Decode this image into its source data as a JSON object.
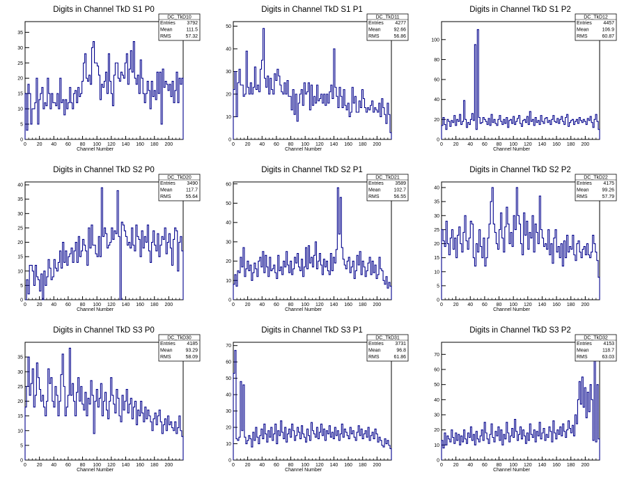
{
  "canvas_background": "#ffffff",
  "line_color": "#00008b",
  "chart_data": [
    {
      "type": "histogram",
      "title": "Digits in Channel TkD S1 P0",
      "stats": {
        "name": "DC_TkD10",
        "entries": "3792",
        "mean": "111.5",
        "rms": "57.32"
      },
      "xlabel": "Channel Number",
      "xlim": [
        0,
        220
      ],
      "ylim": [
        0,
        38.5
      ],
      "xticks": [
        0,
        20,
        40,
        60,
        80,
        100,
        120,
        140,
        160,
        180,
        200
      ],
      "yticks": [
        0,
        5,
        10,
        15,
        20,
        25,
        30,
        35
      ],
      "values": [
        15,
        3,
        18,
        15,
        5,
        10,
        10,
        12,
        20,
        5,
        13,
        15,
        17,
        10,
        12,
        11,
        20,
        15,
        10,
        15,
        12,
        12,
        11,
        15,
        10,
        20,
        12,
        13,
        8,
        13,
        10,
        12,
        17,
        12,
        10,
        15,
        16,
        12,
        17,
        14,
        15,
        19,
        25,
        28,
        20,
        19,
        21,
        18,
        30,
        32,
        25,
        25,
        24,
        21,
        13,
        18,
        17,
        19,
        22,
        15,
        28,
        19,
        15,
        11,
        21,
        25,
        25,
        20,
        19,
        22,
        21,
        20,
        25,
        28,
        18,
        23,
        29,
        22,
        32,
        20,
        18,
        21,
        15,
        26,
        20,
        15,
        12,
        15,
        19,
        16,
        10,
        19,
        14,
        16,
        13,
        22,
        15,
        22,
        5,
        23,
        17,
        19,
        18,
        16,
        18,
        14,
        19,
        12,
        16,
        22,
        12,
        20,
        18,
        20
      ]
    },
    {
      "type": "histogram",
      "title": "Digits in Channel TkD S1 P1",
      "stats": {
        "name": "DC_TkD11",
        "entries": "4277",
        "mean": "92.66",
        "rms": "56.86"
      },
      "xlabel": "Channel Number",
      "xlim": [
        0,
        220
      ],
      "ylim": [
        0,
        52
      ],
      "xticks": [
        0,
        20,
        40,
        60,
        80,
        100,
        120,
        140,
        160,
        180,
        200
      ],
      "yticks": [
        0,
        10,
        20,
        30,
        40,
        50
      ],
      "values": [
        22,
        30,
        10,
        25,
        31,
        24,
        24,
        19,
        20,
        39,
        23,
        20,
        25,
        20,
        23,
        32,
        22,
        24,
        21,
        31,
        35,
        49,
        27,
        23,
        28,
        20,
        27,
        22,
        20,
        29,
        26,
        31,
        28,
        24,
        21,
        20,
        25,
        20,
        26,
        19,
        19,
        13,
        22,
        11,
        20,
        8,
        16,
        20,
        22,
        15,
        25,
        20,
        21,
        25,
        13,
        24,
        15,
        19,
        16,
        24,
        17,
        18,
        20,
        16,
        20,
        15,
        20,
        16,
        21,
        24,
        18,
        40,
        23,
        19,
        14,
        23,
        19,
        14,
        22,
        15,
        13,
        16,
        10,
        12,
        23,
        16,
        19,
        12,
        12,
        17,
        14,
        22,
        18,
        14,
        12,
        14,
        13,
        15,
        17,
        12,
        14,
        13,
        12,
        16,
        10,
        18,
        14,
        11,
        7,
        16,
        11,
        3
      ]
    },
    {
      "type": "histogram",
      "title": "Digits in Channel TkD S1 P2",
      "stats": {
        "name": "DC_TkD12",
        "entries": "4457",
        "mean": "106.9",
        "rms": "60.87"
      },
      "xlabel": "Channel Number",
      "xlim": [
        0,
        220
      ],
      "ylim": [
        0,
        118
      ],
      "xticks": [
        0,
        20,
        40,
        60,
        80,
        100,
        120,
        140,
        160,
        180,
        200
      ],
      "yticks": [
        0,
        20,
        40,
        60,
        80,
        100
      ],
      "values": [
        14,
        22,
        15,
        10,
        20,
        18,
        13,
        19,
        17,
        24,
        14,
        20,
        18,
        25,
        15,
        18,
        39,
        20,
        12,
        17,
        15,
        20,
        26,
        19,
        95,
        10,
        110,
        22,
        16,
        17,
        22,
        20,
        18,
        15,
        21,
        14,
        25,
        17,
        20,
        16,
        14,
        20,
        24,
        18,
        15,
        20,
        16,
        22,
        12,
        19,
        20,
        16,
        23,
        15,
        18,
        21,
        24,
        16,
        13,
        19,
        20,
        17,
        23,
        15,
        28,
        18,
        20,
        14,
        22,
        17,
        19,
        15,
        24,
        18,
        16,
        21,
        22,
        17,
        19,
        15,
        20,
        24,
        18,
        17,
        21,
        16,
        20,
        23,
        18,
        15,
        22,
        25,
        13,
        17,
        19,
        20,
        15,
        18,
        20,
        16,
        22,
        19,
        17,
        20,
        18,
        15,
        21,
        19,
        23,
        17,
        12,
        20,
        25,
        18,
        10
      ]
    },
    {
      "type": "histogram",
      "title": "Digits in Channel TkD S2 P0",
      "stats": {
        "name": "DC_TkD20",
        "entries": "3490",
        "mean": "117.7",
        "rms": "55.64"
      },
      "xlabel": "Channel Number",
      "xlim": [
        0,
        220
      ],
      "ylim": [
        0,
        41
      ],
      "xticks": [
        0,
        20,
        40,
        60,
        80,
        100,
        120,
        140,
        160,
        180,
        200
      ],
      "yticks": [
        0,
        5,
        10,
        15,
        20,
        25,
        30,
        35,
        40
      ],
      "values": [
        0,
        7,
        2,
        12,
        12,
        10,
        5,
        12,
        8,
        7,
        3,
        9,
        0,
        10,
        5,
        8,
        14,
        11,
        7,
        8,
        14,
        11,
        10,
        13,
        17,
        11,
        20,
        13,
        17,
        12,
        15,
        16,
        18,
        13,
        17,
        20,
        13,
        22,
        15,
        17,
        21,
        19,
        17,
        12,
        25,
        18,
        26,
        19,
        19,
        16,
        15,
        22,
        15,
        39,
        22,
        25,
        23,
        18,
        19,
        20,
        25,
        21,
        24,
        23,
        38,
        22,
        0,
        27,
        26,
        24,
        22,
        19,
        20,
        18,
        25,
        19,
        17,
        26,
        22,
        21,
        15,
        24,
        18,
        22,
        20,
        26,
        17,
        13,
        20,
        24,
        19,
        17,
        23,
        15,
        19,
        22,
        21,
        25,
        16,
        20,
        23,
        18,
        12,
        21,
        25,
        24,
        10,
        20,
        22,
        17
      ]
    },
    {
      "type": "histogram",
      "title": "Digits in Channel TkD S2 P1",
      "stats": {
        "name": "DC_TkD21",
        "entries": "3589",
        "mean": "102.7",
        "rms": "56.55"
      },
      "xlabel": "Channel Number",
      "xlim": [
        0,
        220
      ],
      "ylim": [
        0,
        61
      ],
      "xticks": [
        0,
        20,
        40,
        60,
        80,
        100,
        120,
        140,
        160,
        180,
        200
      ],
      "yticks": [
        0,
        10,
        20,
        30,
        40,
        50,
        60
      ],
      "values": [
        8,
        13,
        7,
        15,
        14,
        22,
        17,
        27,
        12,
        16,
        20,
        15,
        18,
        10,
        14,
        19,
        16,
        12,
        20,
        22,
        17,
        25,
        14,
        23,
        17,
        12,
        22,
        15,
        16,
        18,
        14,
        11,
        23,
        15,
        17,
        13,
        20,
        17,
        25,
        18,
        14,
        20,
        13,
        16,
        22,
        19,
        24,
        17,
        15,
        21,
        12,
        17,
        27,
        16,
        28,
        19,
        22,
        17,
        23,
        30,
        16,
        20,
        24,
        18,
        13,
        21,
        17,
        20,
        15,
        13,
        24,
        15,
        22,
        19,
        26,
        58,
        34,
        53,
        27,
        21,
        18,
        16,
        20,
        22,
        14,
        17,
        20,
        11,
        15,
        23,
        18,
        25,
        13,
        20,
        17,
        12,
        15,
        19,
        22,
        13,
        20,
        14,
        18,
        11,
        13,
        22,
        16,
        15,
        10,
        8,
        12,
        6,
        9,
        7
      ]
    },
    {
      "type": "histogram",
      "title": "Digits in Channel TkD S2 P2",
      "stats": {
        "name": "DC_TkD22",
        "entries": "4175",
        "mean": "99.26",
        "rms": "57.79"
      },
      "xlabel": "Channel Number",
      "xlim": [
        0,
        220
      ],
      "ylim": [
        0,
        42
      ],
      "xticks": [
        0,
        20,
        40,
        60,
        80,
        100,
        120,
        140,
        160,
        180,
        200
      ],
      "yticks": [
        0,
        5,
        10,
        15,
        20,
        25,
        30,
        35,
        40
      ],
      "values": [
        25,
        21,
        19,
        28,
        20,
        16,
        22,
        25,
        18,
        22,
        15,
        23,
        26,
        20,
        17,
        24,
        30,
        21,
        18,
        22,
        28,
        27,
        15,
        12,
        20,
        17,
        25,
        19,
        15,
        22,
        12,
        15,
        22,
        27,
        35,
        40,
        27,
        24,
        20,
        18,
        25,
        31,
        22,
        17,
        26,
        33,
        27,
        20,
        24,
        19,
        30,
        25,
        40,
        30,
        27,
        20,
        16,
        31,
        23,
        28,
        18,
        24,
        22,
        30,
        17,
        27,
        24,
        20,
        37,
        25,
        22,
        19,
        20,
        18,
        25,
        16,
        20,
        13,
        22,
        25,
        17,
        19,
        15,
        20,
        12,
        21,
        15,
        23,
        17,
        19,
        18,
        23,
        16,
        14,
        20,
        21,
        17,
        15,
        18,
        19,
        16,
        20,
        16,
        15,
        17,
        23,
        20,
        17,
        14,
        8
      ]
    },
    {
      "type": "histogram",
      "title": "Digits in Channel TkD S3 P0",
      "stats": {
        "name": "DC_TkD30",
        "entries": "4185",
        "mean": "93.29",
        "rms": "58.09"
      },
      "xlabel": "Channel Number",
      "xlim": [
        0,
        220
      ],
      "ylim": [
        0,
        40
      ],
      "xticks": [
        0,
        20,
        40,
        60,
        80,
        100,
        120,
        140,
        160,
        180,
        200
      ],
      "yticks": [
        0,
        5,
        10,
        15,
        20,
        25,
        30,
        35
      ],
      "values": [
        18,
        25,
        35,
        22,
        26,
        31,
        18,
        22,
        33,
        28,
        24,
        20,
        22,
        18,
        15,
        20,
        31,
        26,
        28,
        20,
        18,
        25,
        22,
        15,
        20,
        29,
        36,
        25,
        15,
        18,
        22,
        38,
        22,
        26,
        20,
        15,
        23,
        28,
        20,
        25,
        19,
        17,
        23,
        15,
        21,
        19,
        27,
        22,
        9,
        20,
        24,
        18,
        21,
        26,
        15,
        20,
        23,
        17,
        14,
        20,
        28,
        22,
        19,
        16,
        24,
        21,
        15,
        13,
        22,
        17,
        20,
        24,
        16,
        19,
        21,
        14,
        18,
        20,
        12,
        17,
        15,
        20,
        16,
        13,
        18,
        14,
        17,
        15,
        13,
        10,
        14,
        16,
        12,
        15,
        17,
        13,
        9,
        12,
        14,
        10,
        15,
        12,
        13,
        11,
        10,
        13,
        9,
        11,
        15,
        10,
        8
      ]
    },
    {
      "type": "histogram",
      "title": "Digits in Channel TkD S3 P1",
      "stats": {
        "name": "DC_TkD31",
        "entries": "3731",
        "mean": "96.8",
        "rms": "61.86"
      },
      "xlabel": "Channel Number",
      "xlim": [
        0,
        220
      ],
      "ylim": [
        0,
        72
      ],
      "xticks": [
        0,
        20,
        40,
        60,
        80,
        100,
        120,
        140,
        160,
        180,
        200
      ],
      "yticks": [
        0,
        10,
        20,
        30,
        40,
        50,
        60,
        70
      ],
      "values": [
        53,
        67,
        13,
        12,
        14,
        48,
        18,
        46,
        14,
        10,
        12,
        15,
        13,
        8,
        17,
        12,
        20,
        14,
        10,
        15,
        19,
        13,
        22,
        16,
        11,
        18,
        14,
        20,
        12,
        16,
        22,
        10,
        18,
        15,
        24,
        17,
        13,
        20,
        11,
        16,
        19,
        14,
        22,
        18,
        12,
        15,
        20,
        17,
        13,
        21,
        16,
        14,
        11,
        19,
        15,
        12,
        23,
        18,
        16,
        14,
        20,
        13,
        17,
        22,
        15,
        19,
        12,
        18,
        16,
        21,
        14,
        17,
        13,
        20,
        15,
        18,
        12,
        16,
        22,
        14,
        19,
        17,
        15,
        13,
        20,
        16,
        18,
        14,
        12,
        17,
        21,
        15,
        19,
        13,
        16,
        18,
        14,
        20,
        12,
        15,
        17,
        13,
        19,
        16,
        11,
        14,
        12,
        9,
        8,
        13,
        10,
        12,
        9,
        7
      ]
    },
    {
      "type": "histogram",
      "title": "Digits in Channel TkD S3 P2",
      "stats": {
        "name": "DC_TkD32",
        "entries": "4153",
        "mean": "118.7",
        "rms": "63.03"
      },
      "xlabel": "Channel Number",
      "xlim": [
        0,
        220
      ],
      "ylim": [
        0,
        78
      ],
      "xticks": [
        0,
        20,
        40,
        60,
        80,
        100,
        120,
        140,
        160,
        180,
        200
      ],
      "yticks": [
        0,
        10,
        20,
        30,
        40,
        50,
        60,
        70
      ],
      "values": [
        13,
        8,
        18,
        10,
        16,
        14,
        12,
        20,
        15,
        11,
        18,
        13,
        17,
        10,
        16,
        12,
        20,
        14,
        11,
        18,
        15,
        22,
        13,
        17,
        10,
        19,
        14,
        12,
        16,
        20,
        13,
        25,
        18,
        14,
        11,
        17,
        24,
        15,
        12,
        19,
        16,
        22,
        13,
        20,
        10,
        17,
        14,
        25,
        18,
        12,
        16,
        21,
        15,
        27,
        19,
        13,
        17,
        22,
        14,
        20,
        16,
        11,
        18,
        13,
        24,
        17,
        15,
        20,
        12,
        19,
        16,
        25,
        14,
        18,
        21,
        13,
        17,
        15,
        22,
        19,
        12,
        26,
        18,
        14,
        20,
        17,
        22,
        16,
        24,
        19,
        15,
        20,
        26,
        21,
        18,
        23,
        16,
        30,
        24,
        40,
        52,
        37,
        55,
        35,
        48,
        28,
        45,
        32,
        50,
        40,
        13,
        70,
        12,
        50,
        14
      ]
    }
  ]
}
